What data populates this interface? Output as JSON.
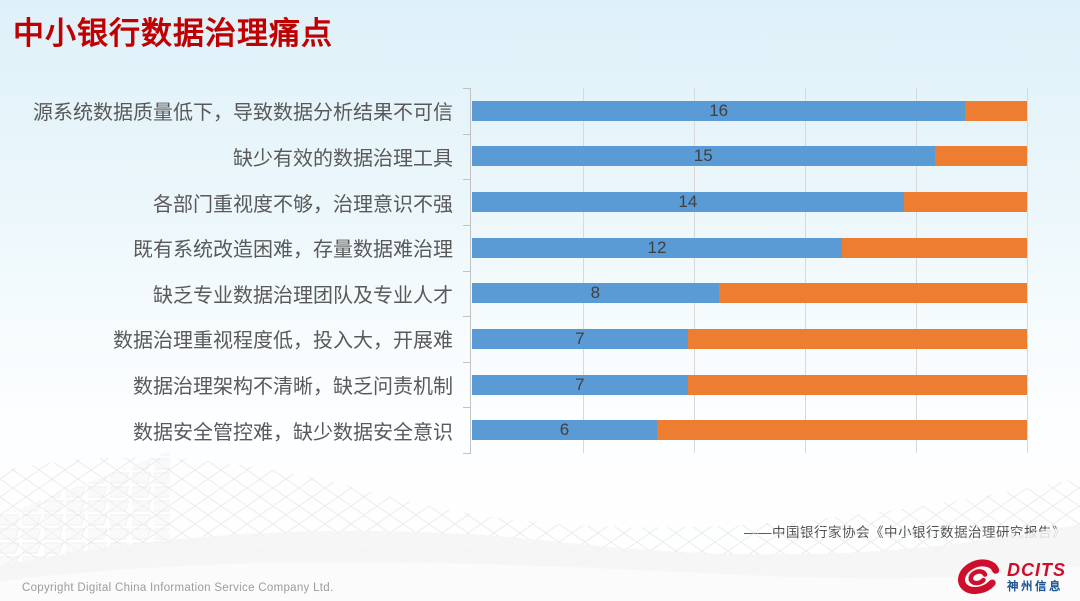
{
  "slide": {
    "title": "中小银行数据治理痛点",
    "source": "——中国银行家协会《中小银行数据治理研究报告》",
    "footer": {
      "copyright": "Copyright  Digital China Information Service Company Ltd.",
      "logo_word": "DCITS",
      "logo_chinese": "神州信息"
    }
  },
  "colors": {
    "title": "#C00000",
    "bar_blue": "#5B9BD5",
    "bar_orange": "#ED7D31",
    "gridline": "#D9D9D9",
    "axis": "#C2C2C2",
    "label": "#595959",
    "value_label": "#404040",
    "source_text": "#4F4F4F",
    "copyright_text": "#9C9C9C",
    "logo_red": "#CE0E2D",
    "logo_blue": "#1B5290"
  },
  "chart_data": {
    "type": "bar",
    "orientation": "horizontal",
    "stacked": true,
    "title": "",
    "xlabel": "",
    "ylabel": "",
    "categories": [
      "源系统数据质量低下，导致数据分析结果不可信",
      "缺少有效的数据治理工具",
      "各部门重视度不够，治理意识不强",
      "既有系统改造困难，存量数据难治理",
      "缺乏专业数据治理团队及专业人才",
      "数据治理重视程度低，投入大，开展难",
      "数据治理架构不清晰，缺乏问责机制",
      "数据安全管控难，缺少数据安全意识"
    ],
    "series": [
      {
        "name": "blue-segment",
        "color": "#5B9BD5",
        "values": [
          16,
          15,
          14,
          12,
          8,
          7,
          7,
          6
        ]
      },
      {
        "name": "orange-segment",
        "color": "#ED7D31",
        "values": [
          2,
          3,
          4,
          6,
          10,
          11,
          11,
          12
        ]
      }
    ],
    "value_labels": [
      "16",
      "15",
      "14",
      "12",
      "8",
      "7",
      "7",
      "6"
    ],
    "xlim": [
      0,
      18
    ],
    "gridline_count": 5,
    "grid": true,
    "legend": "none"
  }
}
